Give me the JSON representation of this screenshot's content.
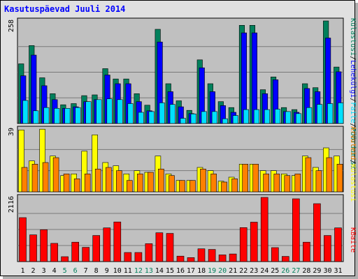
{
  "page": {
    "title": "Kasutuspäevad Juuli 2014"
  },
  "colors": {
    "frame_bg": "#e0e0e0",
    "plot_bg": "#c0c0c0",
    "kulastused": "#00805c",
    "lehekulgi": "#0000ff",
    "failid": "#00e0ff",
    "arvutid": "#ffff00",
    "kulastajad": "#ff8000",
    "kbaidid": "#ff0000",
    "weekend_day": "#00805c",
    "weekday": "#000000"
  },
  "chart_data": [
    {
      "type": "bar",
      "panel": "top",
      "ymax_label": "258",
      "ylim": [
        0,
        258
      ],
      "legend": [
        "Külastusi",
        "/",
        "Lehekülgi",
        "/",
        "Faile",
        "/",
        "Pöördumisi"
      ],
      "legend_colors": [
        "#00805c",
        "#000000",
        "#0000ff",
        "#000000",
        "#00e0ff",
        "#000000",
        "#00805c"
      ],
      "series": [
        {
          "name": "Pöördumisi",
          "values": [
            150,
            196,
            115,
            75,
            47,
            50,
            70,
            72,
            138,
            112,
            112,
            75,
            46,
            237,
            100,
            57,
            33,
            160,
            100,
            55,
            40,
            247,
            247,
            85,
            117,
            40,
            35,
            100,
            90,
            258,
            142
          ]
        },
        {
          "name": "Lehekülgi",
          "values": [
            120,
            172,
            95,
            60,
            38,
            42,
            55,
            60,
            122,
            100,
            100,
            55,
            32,
            205,
            80,
            42,
            25,
            140,
            80,
            45,
            28,
            228,
            228,
            75,
            110,
            30,
            28,
            88,
            80,
            215,
            130
          ]
        },
        {
          "name": "Faile",
          "values": [
            58,
            32,
            40,
            38,
            38,
            40,
            55,
            60,
            62,
            60,
            50,
            28,
            30,
            52,
            48,
            13,
            24,
            30,
            30,
            12,
            20,
            35,
            35,
            35,
            36,
            30,
            25,
            40,
            48,
            50,
            52
          ]
        }
      ]
    },
    {
      "type": "bar",
      "panel": "middle",
      "ymax_label": "39",
      "ylim": [
        0,
        39
      ],
      "legend": [
        "Arvuteid",
        "/",
        "Külastusi"
      ],
      "legend_colors": [
        "#ff8000",
        "#000000",
        "#ffff00"
      ],
      "series": [
        {
          "name": "Külastusi",
          "values": [
            38,
            19,
            38.5,
            22,
            10,
            11,
            25,
            35,
            18,
            16,
            11,
            13,
            12,
            22,
            11,
            7,
            7,
            15,
            13,
            6.5,
            9,
            17,
            17,
            13,
            13,
            11,
            10,
            22,
            15,
            27,
            22
          ]
        },
        {
          "name": "Arvuteid",
          "values": [
            15,
            17,
            18,
            21,
            11,
            8,
            11,
            14,
            15,
            13,
            7,
            11,
            12,
            14,
            10,
            7,
            7,
            14,
            11,
            6,
            8,
            17,
            17,
            11,
            11,
            10,
            11,
            21,
            13,
            21,
            17
          ]
        }
      ]
    },
    {
      "type": "bar",
      "panel": "bottom",
      "ymax_label": "2116",
      "ylim": [
        0,
        2116
      ],
      "legend": [
        "KBaite"
      ],
      "legend_colors": [
        "#ff0000"
      ],
      "series": [
        {
          "name": "KBaite",
          "values": [
            1450,
            880,
            1050,
            600,
            160,
            640,
            470,
            860,
            1110,
            1306,
            300,
            300,
            590,
            950,
            930,
            180,
            130,
            420,
            400,
            220,
            250,
            1120,
            1300,
            2116,
            460,
            170,
            2070,
            640,
            1910,
            860,
            1110
          ]
        }
      ]
    }
  ],
  "x_labels": [
    "1",
    "2",
    "3",
    "4",
    "5",
    "6",
    "7",
    "8",
    "9",
    "10",
    "11",
    "12",
    "13",
    "14",
    "15",
    "16",
    "17",
    "18",
    "19",
    "20",
    "21",
    "22",
    "23",
    "24",
    "25",
    "26",
    "27",
    "28",
    "29",
    "30",
    "31"
  ],
  "weekend_days": [
    5,
    6,
    12,
    13,
    19,
    20,
    26,
    27
  ]
}
